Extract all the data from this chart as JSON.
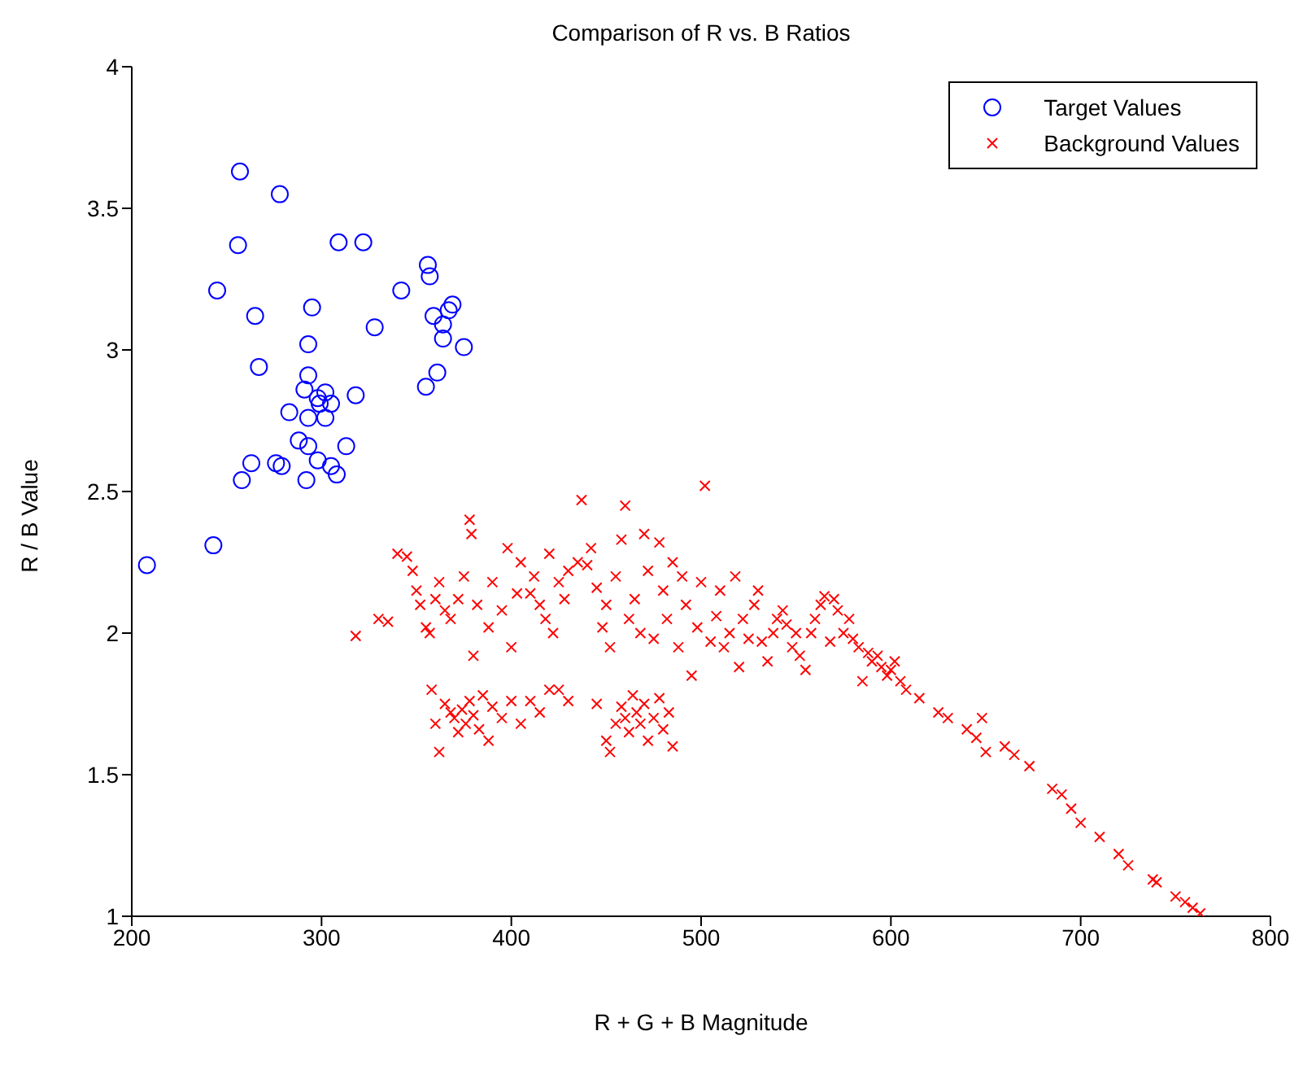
{
  "chart_data": {
    "type": "scatter",
    "title": "Comparison of R vs. B Ratios",
    "xlabel": "R + G + B Magnitude",
    "ylabel": "R / B Value",
    "xlim": [
      200,
      800
    ],
    "xticks": [
      200,
      300,
      400,
      500,
      600,
      700,
      800
    ],
    "ylim": [
      1,
      4
    ],
    "yticks": [
      1,
      1.5,
      2,
      2.5,
      3,
      3.5,
      4
    ],
    "grid": false,
    "legend": "top right",
    "series": [
      {
        "name": "Target Values",
        "color": "#0000ff",
        "marker": "circle",
        "x": [
          257,
          278,
          256,
          309,
          322,
          356,
          357,
          245,
          342,
          295,
          265,
          369,
          367,
          359,
          364,
          328,
          293,
          364,
          375,
          267,
          293,
          361,
          355,
          291,
          302,
          298,
          305,
          299,
          318,
          283,
          293,
          302,
          288,
          293,
          313,
          263,
          276,
          279,
          298,
          305,
          308,
          258,
          292,
          243,
          208
        ],
        "values": [
          3.63,
          3.55,
          3.37,
          3.38,
          3.38,
          3.3,
          3.26,
          3.21,
          3.21,
          3.15,
          3.12,
          3.16,
          3.14,
          3.12,
          3.09,
          3.08,
          3.02,
          3.04,
          3.01,
          2.94,
          2.91,
          2.92,
          2.87,
          2.86,
          2.85,
          2.83,
          2.81,
          2.81,
          2.84,
          2.78,
          2.76,
          2.76,
          2.68,
          2.66,
          2.66,
          2.6,
          2.6,
          2.59,
          2.61,
          2.59,
          2.56,
          2.54,
          2.54,
          2.31,
          2.24
        ]
      },
      {
        "name": "Background Values",
        "color": "#ff0000",
        "marker": "cross",
        "x": [
          318,
          330,
          335,
          340,
          345,
          348,
          350,
          352,
          355,
          357,
          360,
          362,
          365,
          368,
          372,
          375,
          378,
          379,
          380,
          382,
          388,
          390,
          395,
          398,
          400,
          403,
          405,
          410,
          412,
          415,
          418,
          420,
          422,
          425,
          428,
          430,
          435,
          437,
          440,
          442,
          445,
          448,
          450,
          452,
          455,
          458,
          460,
          462,
          465,
          468,
          470,
          472,
          475,
          478,
          480,
          482,
          485,
          488,
          490,
          492,
          495,
          498,
          500,
          502,
          505,
          508,
          510,
          512,
          515,
          518,
          520,
          522,
          525,
          528,
          530,
          532,
          535,
          538,
          540,
          543,
          545,
          548,
          550,
          552,
          555,
          558,
          560,
          563,
          565,
          568,
          570,
          572,
          575,
          578,
          580,
          583,
          585,
          588,
          590,
          593,
          595,
          598,
          600,
          602,
          605,
          608,
          358,
          360,
          362,
          365,
          368,
          370,
          372,
          374,
          376,
          378,
          380,
          383,
          385,
          388,
          390,
          395,
          400,
          405,
          410,
          415,
          420,
          425,
          430,
          445,
          450,
          452,
          455,
          458,
          460,
          462,
          464,
          466,
          468,
          470,
          472,
          475,
          478,
          480,
          483,
          485,
          615,
          625,
          630,
          640,
          645,
          648,
          650,
          660,
          665,
          673,
          685,
          690,
          695,
          700,
          710,
          720,
          725,
          738,
          740,
          750,
          755,
          759,
          763
        ],
        "values": [
          1.99,
          2.05,
          2.04,
          2.28,
          2.27,
          2.22,
          2.15,
          2.1,
          2.02,
          2.0,
          2.12,
          2.18,
          2.08,
          2.05,
          2.12,
          2.2,
          2.4,
          2.35,
          1.92,
          2.1,
          2.02,
          2.18,
          2.08,
          2.3,
          1.95,
          2.14,
          2.25,
          2.14,
          2.2,
          2.1,
          2.05,
          2.28,
          2.0,
          2.18,
          2.12,
          2.22,
          2.25,
          2.47,
          2.24,
          2.3,
          2.16,
          2.02,
          2.1,
          1.95,
          2.2,
          2.33,
          2.45,
          2.05,
          2.12,
          2.0,
          2.35,
          2.22,
          1.98,
          2.32,
          2.15,
          2.05,
          2.25,
          1.95,
          2.2,
          2.1,
          1.85,
          2.02,
          2.18,
          2.52,
          1.97,
          2.06,
          2.15,
          1.95,
          2.0,
          2.2,
          1.88,
          2.05,
          1.98,
          2.1,
          2.15,
          1.97,
          1.9,
          2.0,
          2.05,
          2.08,
          2.03,
          1.95,
          2.0,
          1.92,
          1.87,
          2.0,
          2.05,
          2.1,
          2.13,
          1.97,
          2.12,
          2.08,
          2.0,
          2.05,
          1.98,
          1.95,
          1.83,
          1.93,
          1.9,
          1.92,
          1.88,
          1.85,
          1.87,
          1.9,
          1.83,
          1.8,
          1.8,
          1.68,
          1.58,
          1.75,
          1.72,
          1.7,
          1.65,
          1.73,
          1.68,
          1.76,
          1.71,
          1.66,
          1.78,
          1.62,
          1.74,
          1.7,
          1.76,
          1.68,
          1.76,
          1.72,
          1.8,
          1.8,
          1.76,
          1.75,
          1.62,
          1.58,
          1.68,
          1.74,
          1.7,
          1.65,
          1.78,
          1.72,
          1.68,
          1.75,
          1.62,
          1.7,
          1.77,
          1.66,
          1.72,
          1.6,
          1.77,
          1.72,
          1.7,
          1.66,
          1.63,
          1.7,
          1.58,
          1.6,
          1.57,
          1.53,
          1.45,
          1.43,
          1.38,
          1.33,
          1.28,
          1.22,
          1.18,
          1.13,
          1.12,
          1.07,
          1.05,
          1.03,
          1.01
        ]
      }
    ]
  }
}
